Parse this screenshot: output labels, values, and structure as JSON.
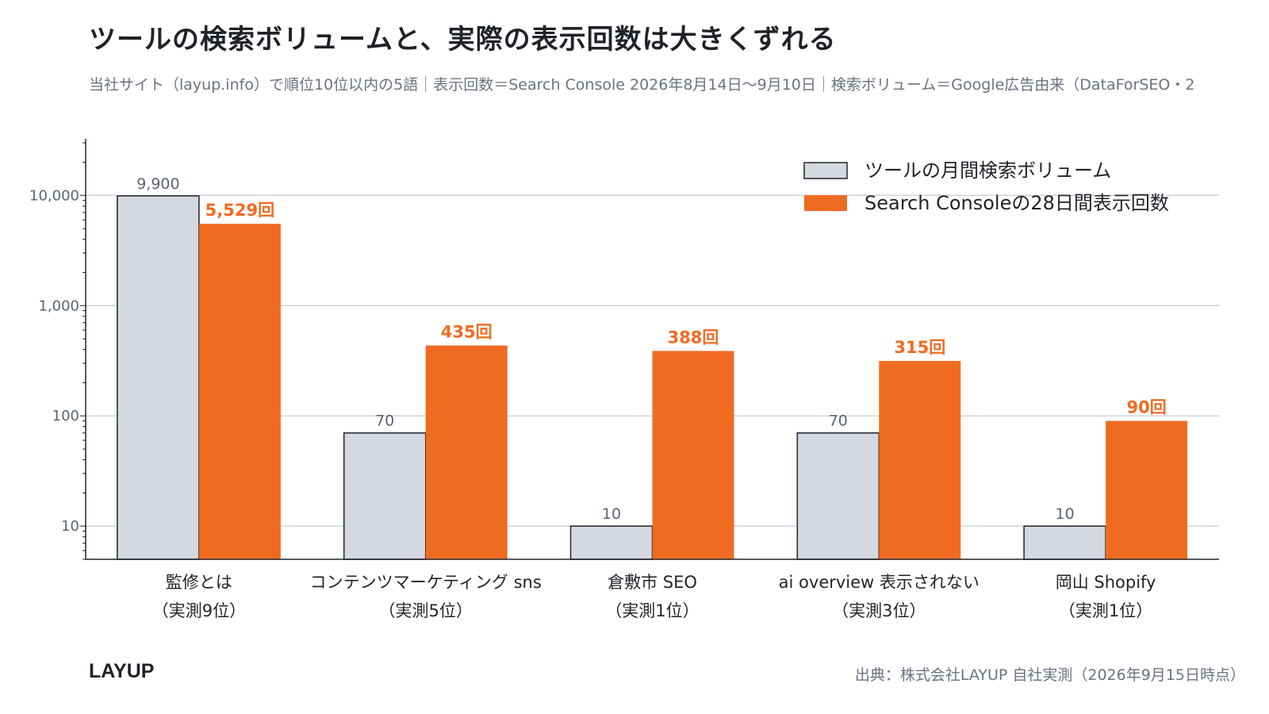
{
  "header": {
    "title": "ツールの検索ボリュームと、実際の表示回数は大きくずれる",
    "subtitle": "当社サイト（layup.info）で順位10位以内の5語｜表示回数＝Search Console 2026年8月14日〜9月10日｜検索ボリューム＝Google広告由来（DataForSEO・2"
  },
  "footer": {
    "brand": "LAYUP",
    "source": "出典：株式会社LAYUP 自社実測（2026年9月15日時点）"
  },
  "colors": {
    "volume_fill": "#d5d8e0",
    "volume_stroke": "#1f2328",
    "impressions_fill": "#f06b22",
    "grid": "#cfd3da",
    "axis": "#1f2328",
    "tick_text": "#5b6472"
  },
  "chart_data": {
    "type": "bar",
    "yscale": "log",
    "ylim": [
      5,
      30000
    ],
    "yticks": [
      10,
      100,
      1000,
      10000
    ],
    "ytick_labels": [
      "10",
      "100",
      "1,000",
      "10,000"
    ],
    "grid": true,
    "legend_position": "top-right",
    "categories": [
      [
        "監修とは",
        "（実測9位）"
      ],
      [
        "コンテンツマーケティング sns",
        "（実測5位）"
      ],
      [
        "倉敷市 SEO",
        "（実測1位）"
      ],
      [
        "ai overview 表示されない",
        "（実測3位）"
      ],
      [
        "岡山 Shopify",
        "（実測1位）"
      ]
    ],
    "series": [
      {
        "name": "ツールの月間検索ボリューム",
        "values": [
          9900,
          70,
          10,
          70,
          10
        ],
        "labels": [
          "9,900",
          "70",
          "10",
          "70",
          "10"
        ]
      },
      {
        "name": "Search Consoleの28日間表示回数",
        "values": [
          5529,
          435,
          388,
          315,
          90
        ],
        "labels": [
          "5,529回",
          "435回",
          "388回",
          "315回",
          "90回"
        ]
      }
    ]
  }
}
